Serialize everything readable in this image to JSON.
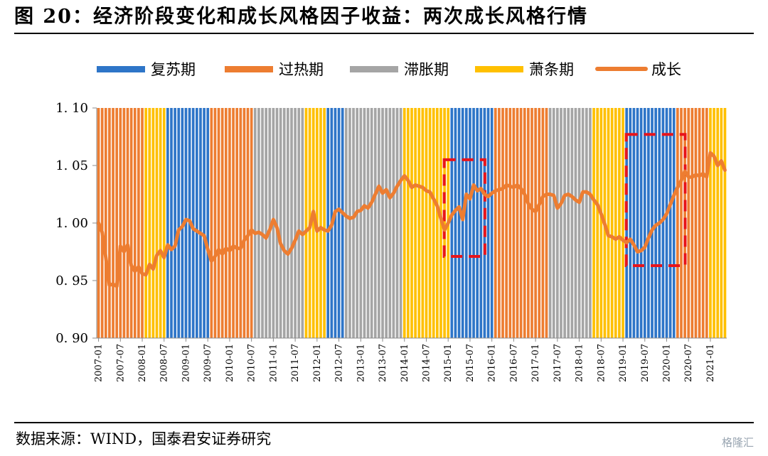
{
  "header": {
    "title": "图 20：经济阶段变化和成长风格因子收益：两次成长风格行情"
  },
  "footer": {
    "source": "数据来源：WIND，国泰君安证券研究",
    "watermark": "格隆汇"
  },
  "colors": {
    "复苏期": "#2E75C8",
    "过热期": "#ED7D31",
    "滞胀期": "#A5A5A5",
    "萧条期": "#FFC000",
    "成长": "#ED7D31",
    "highlight_box": "#E8141B"
  },
  "chart_data": {
    "type": "bar+line",
    "ylim": [
      0.9,
      1.1
    ],
    "y_ticks": [
      "1.10",
      "1.05",
      "1.00",
      "0.95",
      "0.90"
    ],
    "x_tick_labels": [
      "2007-01",
      "2007-07",
      "2008-01",
      "2008-07",
      "2009-01",
      "2009-07",
      "2010-01",
      "2010-07",
      "2011-01",
      "2011-07",
      "2012-01",
      "2012-07",
      "2013-01",
      "2013-07",
      "2014-01",
      "2014-07",
      "2015-01",
      "2015-07",
      "2016-01",
      "2016-07",
      "2017-01",
      "2017-07",
      "2018-01",
      "2018-07",
      "2019-01",
      "2019-07",
      "2020-01",
      "2020-07",
      "2021-01"
    ],
    "legend": [
      {
        "label": "复苏期",
        "kind": "bar"
      },
      {
        "label": "过热期",
        "kind": "bar"
      },
      {
        "label": "滞胀期",
        "kind": "bar"
      },
      {
        "label": "萧条期",
        "kind": "bar"
      },
      {
        "label": "成长",
        "kind": "line"
      }
    ],
    "phases": [
      {
        "phase": "过热期",
        "start": "2007-01",
        "end": "2008-01"
      },
      {
        "phase": "萧条期",
        "start": "2008-02",
        "end": "2008-07"
      },
      {
        "phase": "复苏期",
        "start": "2008-08",
        "end": "2009-07"
      },
      {
        "phase": "过热期",
        "start": "2009-08",
        "end": "2010-07"
      },
      {
        "phase": "滞胀期",
        "start": "2010-08",
        "end": "2011-09"
      },
      {
        "phase": "萧条期",
        "start": "2011-10",
        "end": "2012-03"
      },
      {
        "phase": "复苏期",
        "start": "2012-04",
        "end": "2012-08"
      },
      {
        "phase": "滞胀期",
        "start": "2012-09",
        "end": "2013-12"
      },
      {
        "phase": "萧条期",
        "start": "2014-01",
        "end": "2015-01"
      },
      {
        "phase": "复苏期",
        "start": "2015-02",
        "end": "2016-01"
      },
      {
        "phase": "过热期",
        "start": "2016-02",
        "end": "2017-04"
      },
      {
        "phase": "滞胀期",
        "start": "2017-05",
        "end": "2018-04"
      },
      {
        "phase": "萧条期",
        "start": "2018-05",
        "end": "2019-01"
      },
      {
        "phase": "复苏期",
        "start": "2019-02",
        "end": "2020-03"
      },
      {
        "phase": "过热期",
        "start": "2020-04",
        "end": "2020-12"
      },
      {
        "phase": "萧条期",
        "start": "2021-01",
        "end": "2021-05"
      }
    ],
    "series": [
      {
        "name": "成长",
        "points": [
          [
            "2007-01",
            1.0
          ],
          [
            "2007-02",
            0.992
          ],
          [
            "2007-03",
            0.97
          ],
          [
            "2007-04",
            0.946
          ],
          [
            "2007-05",
            0.947
          ],
          [
            "2007-06",
            0.945
          ],
          [
            "2007-07",
            0.98
          ],
          [
            "2007-08",
            0.975
          ],
          [
            "2007-09",
            0.981
          ],
          [
            "2007-10",
            0.963
          ],
          [
            "2007-11",
            0.958
          ],
          [
            "2007-12",
            0.962
          ],
          [
            "2008-01",
            0.956
          ],
          [
            "2008-02",
            0.955
          ],
          [
            "2008-03",
            0.964
          ],
          [
            "2008-04",
            0.96
          ],
          [
            "2008-05",
            0.972
          ],
          [
            "2008-06",
            0.976
          ],
          [
            "2008-07",
            0.97
          ],
          [
            "2008-08",
            0.981
          ],
          [
            "2008-09",
            0.977
          ],
          [
            "2008-10",
            0.98
          ],
          [
            "2008-11",
            0.994
          ],
          [
            "2008-12",
            0.997
          ],
          [
            "2009-01",
            1.003
          ],
          [
            "2009-02",
            1.002
          ],
          [
            "2009-03",
            0.995
          ],
          [
            "2009-04",
            0.993
          ],
          [
            "2009-05",
            0.991
          ],
          [
            "2009-06",
            0.989
          ],
          [
            "2009-07",
            0.977
          ],
          [
            "2009-08",
            0.967
          ],
          [
            "2009-09",
            0.971
          ],
          [
            "2009-10",
            0.977
          ],
          [
            "2009-11",
            0.973
          ],
          [
            "2009-12",
            0.978
          ],
          [
            "2010-01",
            0.976
          ],
          [
            "2010-02",
            0.98
          ],
          [
            "2010-03",
            0.978
          ],
          [
            "2010-04",
            0.978
          ],
          [
            "2010-05",
            0.985
          ],
          [
            "2010-06",
            0.989
          ],
          [
            "2010-07",
            0.994
          ],
          [
            "2010-08",
            0.991
          ],
          [
            "2010-09",
            0.992
          ],
          [
            "2010-10",
            0.99
          ],
          [
            "2010-11",
            0.987
          ],
          [
            "2010-12",
            0.994
          ],
          [
            "2011-01",
            1.003
          ],
          [
            "2011-02",
            0.996
          ],
          [
            "2011-03",
            0.982
          ],
          [
            "2011-04",
            0.976
          ],
          [
            "2011-05",
            0.973
          ],
          [
            "2011-06",
            0.978
          ],
          [
            "2011-07",
            0.985
          ],
          [
            "2011-08",
            0.993
          ],
          [
            "2011-09",
            0.99
          ],
          [
            "2011-10",
            0.993
          ],
          [
            "2011-11",
            0.996
          ],
          [
            "2011-12",
            1.01
          ],
          [
            "2012-01",
            0.993
          ],
          [
            "2012-02",
            0.996
          ],
          [
            "2012-03",
            0.994
          ],
          [
            "2012-04",
            0.993
          ],
          [
            "2012-05",
            0.998
          ],
          [
            "2012-06",
            1.01
          ],
          [
            "2012-07",
            1.012
          ],
          [
            "2012-08",
            1.009
          ],
          [
            "2012-09",
            1.006
          ],
          [
            "2012-10",
            1.004
          ],
          [
            "2012-11",
            1.005
          ],
          [
            "2012-12",
            1.01
          ],
          [
            "2013-01",
            1.011
          ],
          [
            "2013-02",
            1.015
          ],
          [
            "2013-03",
            1.013
          ],
          [
            "2013-04",
            1.018
          ],
          [
            "2013-05",
            1.025
          ],
          [
            "2013-06",
            1.032
          ],
          [
            "2013-07",
            1.026
          ],
          [
            "2013-08",
            1.029
          ],
          [
            "2013-09",
            1.022
          ],
          [
            "2013-10",
            1.026
          ],
          [
            "2013-11",
            1.032
          ],
          [
            "2013-12",
            1.037
          ],
          [
            "2014-01",
            1.041
          ],
          [
            "2014-02",
            1.037
          ],
          [
            "2014-03",
            1.031
          ],
          [
            "2014-04",
            1.033
          ],
          [
            "2014-05",
            1.032
          ],
          [
            "2014-06",
            1.031
          ],
          [
            "2014-07",
            1.028
          ],
          [
            "2014-08",
            1.027
          ],
          [
            "2014-09",
            1.021
          ],
          [
            "2014-10",
            1.015
          ],
          [
            "2014-11",
            1.004
          ],
          [
            "2014-12",
            0.994
          ],
          [
            "2015-01",
            1.0
          ],
          [
            "2015-02",
            1.007
          ],
          [
            "2015-03",
            1.011
          ],
          [
            "2015-04",
            1.014
          ],
          [
            "2015-05",
            1.003
          ],
          [
            "2015-06",
            1.025
          ],
          [
            "2015-07",
            1.021
          ],
          [
            "2015-08",
            1.033
          ],
          [
            "2015-09",
            1.028
          ],
          [
            "2015-10",
            1.03
          ],
          [
            "2015-11",
            1.025
          ],
          [
            "2015-12",
            1.023
          ],
          [
            "2016-01",
            1.026
          ],
          [
            "2016-02",
            1.028
          ],
          [
            "2016-03",
            1.029
          ],
          [
            "2016-04",
            1.03
          ],
          [
            "2016-05",
            1.033
          ],
          [
            "2016-06",
            1.032
          ],
          [
            "2016-07",
            1.031
          ],
          [
            "2016-08",
            1.033
          ],
          [
            "2016-09",
            1.03
          ],
          [
            "2016-10",
            1.025
          ],
          [
            "2016-11",
            1.017
          ],
          [
            "2016-12",
            1.012
          ],
          [
            "2017-01",
            1.01
          ],
          [
            "2017-02",
            1.016
          ],
          [
            "2017-03",
            1.023
          ],
          [
            "2017-04",
            1.025
          ],
          [
            "2017-05",
            1.025
          ],
          [
            "2017-06",
            1.024
          ],
          [
            "2017-07",
            1.013
          ],
          [
            "2017-08",
            1.017
          ],
          [
            "2017-09",
            1.024
          ],
          [
            "2017-10",
            1.025
          ],
          [
            "2017-11",
            1.023
          ],
          [
            "2017-12",
            1.02
          ],
          [
            "2018-01",
            1.018
          ],
          [
            "2018-02",
            1.027
          ],
          [
            "2018-03",
            1.027
          ],
          [
            "2018-04",
            1.025
          ],
          [
            "2018-05",
            1.02
          ],
          [
            "2018-06",
            1.016
          ],
          [
            "2018-07",
            1.008
          ],
          [
            "2018-08",
            0.999
          ],
          [
            "2018-09",
            0.989
          ],
          [
            "2018-10",
            0.988
          ],
          [
            "2018-11",
            0.986
          ],
          [
            "2018-12",
            0.988
          ],
          [
            "2019-01",
            0.985
          ],
          [
            "2019-02",
            0.983
          ],
          [
            "2019-03",
            0.986
          ],
          [
            "2019-04",
            0.981
          ],
          [
            "2019-05",
            0.975
          ],
          [
            "2019-06",
            0.976
          ],
          [
            "2019-07",
            0.979
          ],
          [
            "2019-08",
            0.987
          ],
          [
            "2019-09",
            0.994
          ],
          [
            "2019-10",
            0.998
          ],
          [
            "2019-11",
            1.0
          ],
          [
            "2019-12",
            1.003
          ],
          [
            "2020-01",
            1.008
          ],
          [
            "2020-02",
            1.016
          ],
          [
            "2020-03",
            1.024
          ],
          [
            "2020-04",
            1.031
          ],
          [
            "2020-05",
            1.037
          ],
          [
            "2020-06",
            1.045
          ],
          [
            "2020-07",
            1.04
          ],
          [
            "2020-08",
            1.04
          ],
          [
            "2020-09",
            1.042
          ],
          [
            "2020-10",
            1.041
          ],
          [
            "2020-11",
            1.043
          ],
          [
            "2020-12",
            1.04
          ],
          [
            "2021-01",
            1.061
          ],
          [
            "2021-02",
            1.058
          ],
          [
            "2021-03",
            1.05
          ],
          [
            "2021-04",
            1.054
          ],
          [
            "2021-05",
            1.046
          ]
        ]
      }
    ],
    "highlights": [
      {
        "start": "2015-01",
        "end": "2015-10",
        "y_top": 1.055,
        "y_bottom": 0.971
      },
      {
        "start": "2019-03",
        "end": "2020-05",
        "y_top": 1.077,
        "y_bottom": 0.963
      }
    ],
    "grid": false,
    "legend_position": "top"
  }
}
